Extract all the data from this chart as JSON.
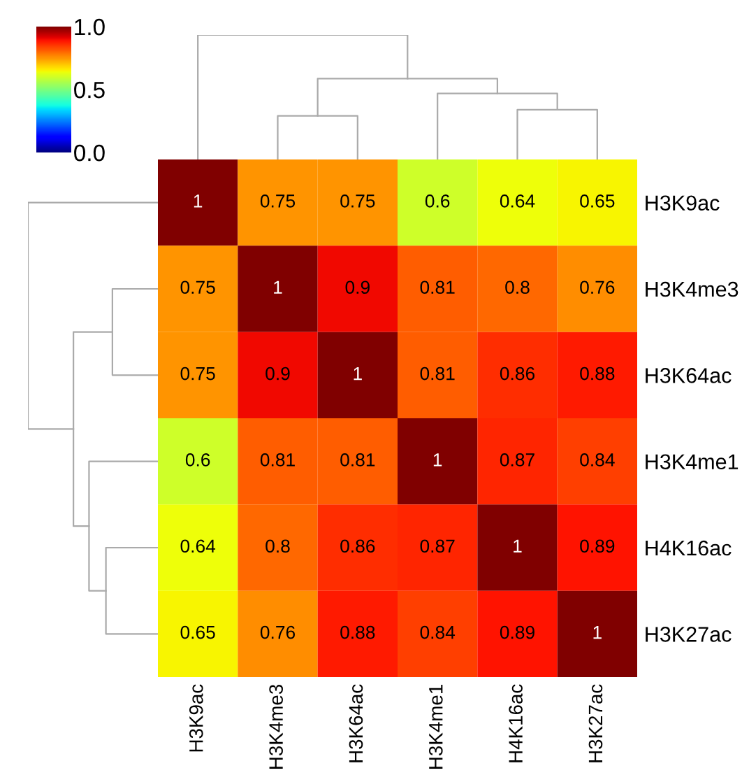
{
  "chart_data": {
    "type": "heatmap",
    "categories": [
      "H3K9ac",
      "H3K4me3",
      "H3K64ac",
      "H3K4me1",
      "H4K16ac",
      "H3K27ac"
    ],
    "y_categories": [
      "H3K9ac",
      "H3K4me3",
      "H3K64ac",
      "H3K4me1",
      "H4K16ac",
      "H3K27ac"
    ],
    "cells": [
      [
        1,
        0.75,
        0.75,
        0.6,
        0.64,
        0.65
      ],
      [
        0.75,
        1,
        0.9,
        0.81,
        0.8,
        0.76
      ],
      [
        0.75,
        0.9,
        1,
        0.81,
        0.86,
        0.88
      ],
      [
        0.6,
        0.81,
        0.81,
        1,
        0.87,
        0.84
      ],
      [
        0.64,
        0.8,
        0.86,
        0.87,
        1,
        0.89
      ],
      [
        0.65,
        0.76,
        0.88,
        0.84,
        0.89,
        1
      ]
    ],
    "clim": [
      0,
      1
    ],
    "cticks": [
      {
        "value": 0,
        "label": "0.0"
      },
      {
        "value": 0.5,
        "label": "0.5"
      },
      {
        "value": 1,
        "label": "1.0"
      }
    ],
    "data_labels": true
  }
}
